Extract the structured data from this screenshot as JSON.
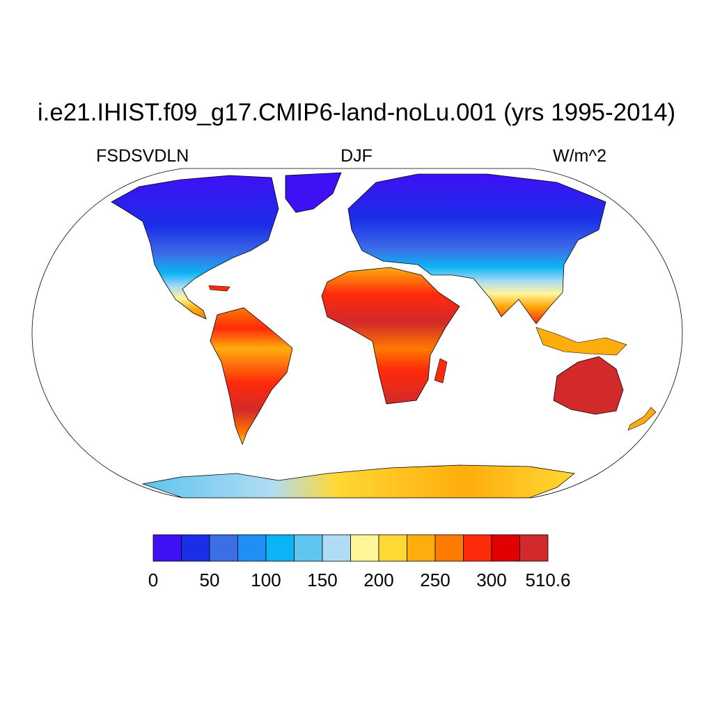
{
  "title": "i.e21.IHIST.f09_g17.CMIP6-land-noLu.001 (yrs 1995-2014)",
  "variable": "FSDSVDLN",
  "season": "DJF",
  "units": "W/m^2",
  "colorbar": {
    "colors": [
      "#4010f5",
      "#1a2ee8",
      "#3c6ee6",
      "#1f8ef5",
      "#0bb4f5",
      "#5ec4f0",
      "#b0dcf3",
      "#fff599",
      "#ffd833",
      "#ffad0d",
      "#ff7a00",
      "#ff2a0a",
      "#e00000",
      "#d22a2a"
    ],
    "tick_labels": [
      "0",
      "50",
      "100",
      "150",
      "200",
      "250",
      "300",
      "510.6"
    ]
  },
  "regions": [
    {
      "name": "north-america",
      "color": "#3c6ee6"
    },
    {
      "name": "greenland",
      "color": "#4010f5"
    },
    {
      "name": "south-america",
      "color": "#ff2a0a"
    },
    {
      "name": "africa",
      "color": "#ff2a0a"
    },
    {
      "name": "eurasia",
      "color": "#1a2ee8"
    },
    {
      "name": "australia",
      "color": "#d22a2a"
    },
    {
      "name": "antarctica",
      "color": "#ffd833"
    }
  ]
}
